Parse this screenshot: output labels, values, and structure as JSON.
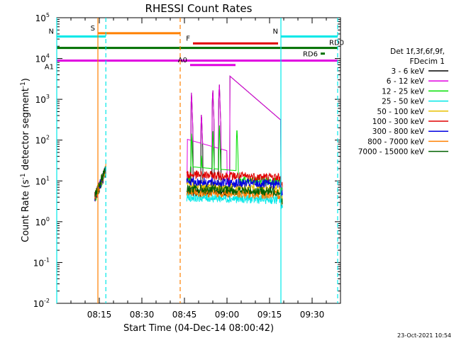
{
  "chart_data": {
    "type": "line",
    "title": "RHESSI Count Rates",
    "xlabel": "Start Time (04-Dec-14 08:00:42)",
    "ylabel_main": "Count Rate (s",
    "ylabel_sup1": "-1",
    "ylabel_mid": " detector segment",
    "ylabel_sup2": "-1",
    "ylabel_end": ")",
    "timestamp": "23-Oct-2021 10:54",
    "x_ticks": [
      {
        "min": 15,
        "label": "08:15"
      },
      {
        "min": 30,
        "label": "08:30"
      },
      {
        "min": 45,
        "label": "08:45"
      },
      {
        "min": 60,
        "label": "09:00"
      },
      {
        "min": 75,
        "label": "09:15"
      },
      {
        "min": 90,
        "label": "09:30"
      }
    ],
    "y_ticks": [
      {
        "exp": -2,
        "base": "10",
        "sup": "-2"
      },
      {
        "exp": -1,
        "base": "10",
        "sup": "-1"
      },
      {
        "exp": 0,
        "base": "10",
        "sup": "0"
      },
      {
        "exp": 1,
        "base": "10",
        "sup": "1"
      },
      {
        "exp": 2,
        "base": "10",
        "sup": "2"
      },
      {
        "exp": 3,
        "base": "10",
        "sup": "3"
      },
      {
        "exp": 4,
        "base": "10",
        "sup": "4"
      },
      {
        "exp": 5,
        "base": "10",
        "sup": "5"
      }
    ],
    "xlim_minutes": [
      0,
      100
    ],
    "ylim_log10": [
      -2,
      5
    ],
    "legend_header": [
      "Det 1f,3f,6f,9f,",
      "FDecim 1"
    ],
    "series": [
      {
        "name": "3 - 6 keV",
        "color": "#000000"
      },
      {
        "name": "6 - 12 keV",
        "color": "#e000e0"
      },
      {
        "name": "12 - 25 keV",
        "color": "#00e000"
      },
      {
        "name": "25 - 50 keV",
        "color": "#00e8e8"
      },
      {
        "name": "50 - 100 keV",
        "color": "#e8c000"
      },
      {
        "name": "100 - 300 keV",
        "color": "#e00000"
      },
      {
        "name": "300 - 800 keV",
        "color": "#0000e0"
      },
      {
        "name": "800 - 7000 keV",
        "color": "#ff8000"
      },
      {
        "name": "7000 - 15000 keV",
        "color": "#006000"
      }
    ],
    "state_bars": [
      {
        "label": "S",
        "color": "#ff8000",
        "start": 14.5,
        "end": 43.5,
        "y": 4.62
      },
      {
        "label": "N",
        "color": "#00e8e8",
        "start": 0,
        "end": 17.3,
        "y": 4.54
      },
      {
        "label": "N",
        "color": "#00e8e8",
        "start": 79,
        "end": 99,
        "y": 4.54
      },
      {
        "label": "F",
        "color": "#e00000",
        "start": 48,
        "end": 78,
        "y": 4.37
      },
      {
        "label": "RD0",
        "color": "#007000",
        "start": 0,
        "end": 99,
        "y": 4.26
      },
      {
        "label": "RD6",
        "color": "#007000",
        "start": 93,
        "end": 94.5,
        "y": 4.12
      },
      {
        "label": "A1",
        "color": "#e000e0",
        "start": 0,
        "end": 99,
        "y": 3.95
      },
      {
        "label": "A0",
        "color": "#e000e0",
        "start": 47,
        "end": 63,
        "y": 3.84
      }
    ],
    "vlines": [
      {
        "min": 0,
        "color": "#00e8e8",
        "dash": false
      },
      {
        "min": 14.5,
        "color": "#ff8000",
        "dash": false
      },
      {
        "min": 17.3,
        "color": "#00e8e8",
        "dash": true
      },
      {
        "min": 43.5,
        "color": "#ff8000",
        "dash": true
      },
      {
        "min": 79,
        "color": "#00e8e8",
        "dash": false
      },
      {
        "min": 99,
        "color": "#00e8e8",
        "dash": true
      }
    ]
  }
}
